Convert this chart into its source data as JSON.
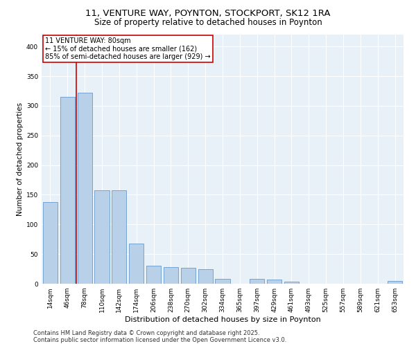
{
  "title1": "11, VENTURE WAY, POYNTON, STOCKPORT, SK12 1RA",
  "title2": "Size of property relative to detached houses in Poynton",
  "xlabel": "Distribution of detached houses by size in Poynton",
  "ylabel": "Number of detached properties",
  "categories": [
    "14sqm",
    "46sqm",
    "78sqm",
    "110sqm",
    "142sqm",
    "174sqm",
    "206sqm",
    "238sqm",
    "270sqm",
    "302sqm",
    "334sqm",
    "365sqm",
    "397sqm",
    "429sqm",
    "461sqm",
    "493sqm",
    "525sqm",
    "557sqm",
    "589sqm",
    "621sqm",
    "653sqm"
  ],
  "values": [
    138,
    315,
    322,
    158,
    158,
    68,
    30,
    28,
    27,
    24,
    8,
    0,
    8,
    7,
    3,
    0,
    0,
    0,
    0,
    0,
    5
  ],
  "bar_color": "#b8d0e8",
  "bar_edge_color": "#6699cc",
  "vline_color": "#cc0000",
  "vline_x_index": 1.5,
  "annotation_text": "11 VENTURE WAY: 80sqm\n← 15% of detached houses are smaller (162)\n85% of semi-detached houses are larger (929) →",
  "annotation_box_edge_color": "#cc0000",
  "ylim": [
    0,
    420
  ],
  "yticks": [
    0,
    50,
    100,
    150,
    200,
    250,
    300,
    350,
    400
  ],
  "background_color": "#e8f0f8",
  "grid_color": "#ffffff",
  "footer_text": "Contains HM Land Registry data © Crown copyright and database right 2025.\nContains public sector information licensed under the Open Government Licence v3.0.",
  "title1_fontsize": 9.5,
  "title2_fontsize": 8.5,
  "xlabel_fontsize": 8,
  "ylabel_fontsize": 7.5,
  "tick_fontsize": 6.5,
  "annotation_fontsize": 7,
  "footer_fontsize": 6
}
